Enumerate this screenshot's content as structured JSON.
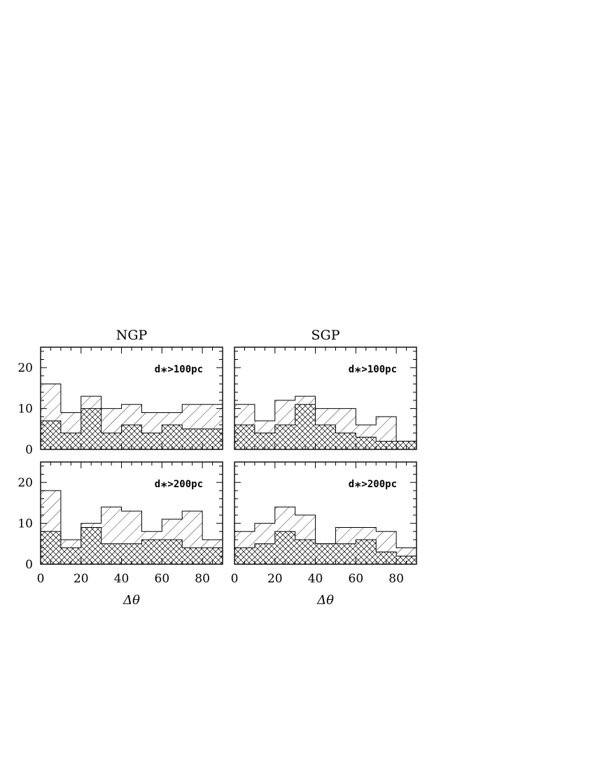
{
  "columns": [
    "NGP",
    "SGP"
  ],
  "chart_data": [
    {
      "type": "bar",
      "title": "NGP",
      "annotation": {
        "base": "d",
        "sub": "*",
        "rest": ">100pc"
      },
      "xlabel": "",
      "xlim": [
        0,
        90
      ],
      "ylim": [
        0,
        25
      ],
      "xticks": [
        0,
        20,
        40,
        60,
        80
      ],
      "yticks": [
        0,
        10,
        20
      ],
      "bin_edges": [
        0,
        10,
        20,
        30,
        40,
        50,
        60,
        70,
        80,
        90
      ],
      "series": [
        {
          "pattern": "single-hatch",
          "values": [
            16,
            9,
            13,
            10,
            11,
            9,
            9,
            11,
            11
          ]
        },
        {
          "pattern": "cross-hatch",
          "values": [
            7,
            4,
            10,
            4,
            6,
            4,
            6,
            5,
            5
          ]
        }
      ]
    },
    {
      "type": "bar",
      "title": "SGP",
      "annotation": {
        "base": "d",
        "sub": "*",
        "rest": ">100pc"
      },
      "xlabel": "",
      "xlim": [
        0,
        90
      ],
      "ylim": [
        0,
        25
      ],
      "xticks": [
        0,
        20,
        40,
        60,
        80
      ],
      "yticks": [
        0,
        10,
        20
      ],
      "bin_edges": [
        0,
        10,
        20,
        30,
        40,
        50,
        60,
        70,
        80,
        90
      ],
      "series": [
        {
          "pattern": "single-hatch",
          "values": [
            11,
            7,
            12,
            13,
            10,
            10,
            6,
            8,
            2
          ]
        },
        {
          "pattern": "cross-hatch",
          "values": [
            6,
            4,
            6,
            11,
            6,
            4,
            3,
            2,
            2
          ]
        }
      ]
    },
    {
      "type": "bar",
      "annotation": {
        "base": "d",
        "sub": "*",
        "rest": ">200pc"
      },
      "xlabel": "Δθ",
      "xlim": [
        0,
        90
      ],
      "ylim": [
        0,
        25
      ],
      "xticks": [
        0,
        20,
        40,
        60,
        80
      ],
      "yticks": [
        0,
        10,
        20
      ],
      "bin_edges": [
        0,
        10,
        20,
        30,
        40,
        50,
        60,
        70,
        80,
        90
      ],
      "series": [
        {
          "pattern": "single-hatch",
          "values": [
            18,
            6,
            10,
            14,
            13,
            8,
            11,
            13,
            6
          ]
        },
        {
          "pattern": "cross-hatch",
          "values": [
            8,
            4,
            9,
            5,
            5,
            6,
            6,
            4,
            4
          ]
        }
      ]
    },
    {
      "type": "bar",
      "annotation": {
        "base": "d",
        "sub": "*",
        "rest": ">200pc"
      },
      "xlabel": "Δθ",
      "xlim": [
        0,
        90
      ],
      "ylim": [
        0,
        25
      ],
      "xticks": [
        0,
        20,
        40,
        60,
        80
      ],
      "yticks": [
        0,
        10,
        20
      ],
      "bin_edges": [
        0,
        10,
        20,
        30,
        40,
        50,
        60,
        70,
        80,
        90
      ],
      "series": [
        {
          "pattern": "single-hatch",
          "values": [
            8,
            10,
            14,
            12,
            5,
            9,
            9,
            8,
            4
          ]
        },
        {
          "pattern": "cross-hatch",
          "values": [
            4,
            5,
            8,
            6,
            5,
            5,
            6,
            3,
            2
          ]
        }
      ]
    }
  ]
}
